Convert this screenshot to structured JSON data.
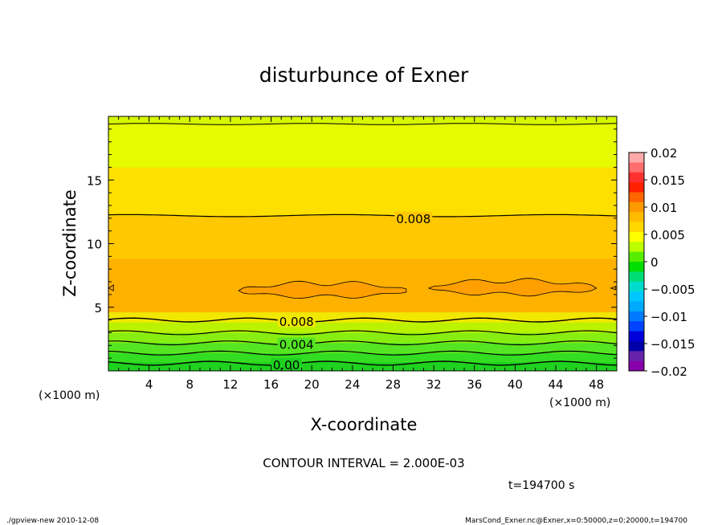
{
  "chart_data": {
    "type": "contour",
    "title": "disturbunce of Exner",
    "xlabel": "X-coordinate",
    "ylabel": "Z-coordinate",
    "x_unit_left": "(×1000 m)",
    "x_unit_right": "(×1000 m)",
    "xlim": [
      0,
      50
    ],
    "ylim": [
      0,
      20
    ],
    "x_ticks": [
      4,
      8,
      12,
      16,
      20,
      24,
      28,
      32,
      36,
      40,
      44,
      48
    ],
    "y_ticks": [
      5,
      10,
      15
    ],
    "contour_interval": "CONTOUR INTERVAL = 2.000E-03",
    "time_label": "t=194700 s",
    "contour_labels": [
      {
        "text": "0.008",
        "x": 30,
        "z": 12.0
      },
      {
        "text": "0.008",
        "x": 18.5,
        "z": 3.9
      },
      {
        "text": "0.004",
        "x": 18.5,
        "z": 2.1
      },
      {
        "text": "0.00",
        "x": 17.5,
        "z": 0.5
      }
    ],
    "bands": [
      {
        "z0": 0.0,
        "z1": 0.7,
        "color": "#1fd21f"
      },
      {
        "z0": 0.7,
        "z1": 1.4,
        "color": "#33dd22"
      },
      {
        "z0": 1.4,
        "z1": 2.2,
        "color": "#55e522"
      },
      {
        "z0": 2.2,
        "z1": 3.0,
        "color": "#88ee11"
      },
      {
        "z0": 3.0,
        "z1": 3.8,
        "color": "#bbf200"
      },
      {
        "z0": 3.8,
        "z1": 4.6,
        "color": "#f0e800"
      },
      {
        "z0": 4.6,
        "z1": 8.8,
        "color": "#ffb100"
      },
      {
        "z0": 8.8,
        "z1": 12.2,
        "color": "#ffc800"
      },
      {
        "z0": 12.2,
        "z1": 16.0,
        "color": "#fde000"
      },
      {
        "z0": 16.0,
        "z1": 19.4,
        "color": "#e6fa00"
      }
    ],
    "colorbar": {
      "labels": [
        "0.02",
        "0.015",
        "0.01",
        "0.005",
        "0",
        "−0.005",
        "−0.01",
        "−0.015",
        "−0.02"
      ],
      "colors": [
        "#ffaaaa",
        "#ff6d6d",
        "#ff3030",
        "#ff2000",
        "#ff6600",
        "#ff9900",
        "#ffbb00",
        "#ffd800",
        "#ffff00",
        "#bbff00",
        "#55ee00",
        "#00dd00",
        "#00dd77",
        "#00ddcc",
        "#00c8ff",
        "#00aaff",
        "#007bff",
        "#0044ff",
        "#0000dd",
        "#0000aa",
        "#6622aa",
        "#8800aa"
      ]
    }
  },
  "footer": {
    "left": "./gpview-new  2010-12-08",
    "right": "MarsCond_Exner.nc@Exner,x=0:50000,z=0:20000,t=194700"
  }
}
